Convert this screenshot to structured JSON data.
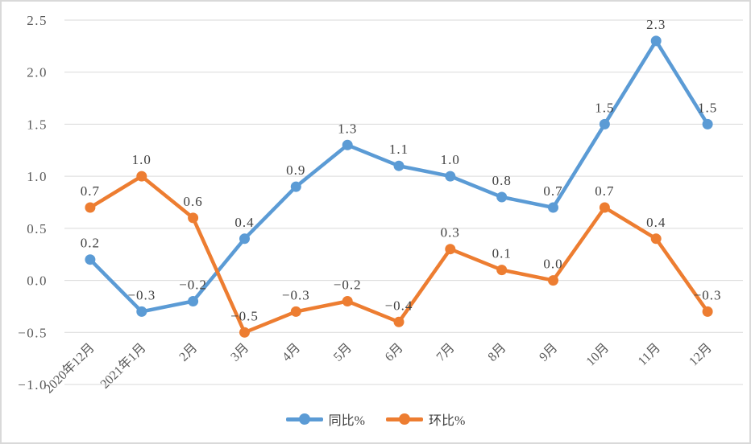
{
  "chart_data": {
    "type": "line",
    "title": "",
    "categories": [
      "2020年12月",
      "2021年1月",
      "2月",
      "3月",
      "4月",
      "5月",
      "6月",
      "7月",
      "8月",
      "9月",
      "10月",
      "11月",
      "12月"
    ],
    "series": [
      {
        "name": "同比%",
        "color": "#5B9BD5",
        "values": [
          0.2,
          -0.3,
          -0.2,
          0.4,
          0.9,
          1.3,
          1.1,
          1.0,
          0.8,
          0.7,
          1.5,
          2.3,
          1.5
        ]
      },
      {
        "name": "环比%",
        "color": "#ED7D31",
        "values": [
          0.7,
          1.0,
          0.6,
          -0.5,
          -0.3,
          -0.2,
          -0.4,
          0.3,
          0.1,
          0.0,
          0.7,
          0.4,
          -0.3
        ]
      }
    ],
    "xlabel": "",
    "ylabel": "",
    "ylim": [
      -1.0,
      2.5
    ],
    "y_tick_step": 0.5,
    "y_tick_labels": [
      "2.5",
      "2.0",
      "1.5",
      "1.0",
      "0.5",
      "0.0",
      "-0.5",
      "-1.0"
    ],
    "grid": "horizontal",
    "gridline_color": "#D9D9D9",
    "axis_text_color": "#595959",
    "data_label_color": "#404040",
    "x_label_rotation_deg": 45,
    "data_labels_shown": true,
    "legend_position": "bottom",
    "marker": "circle"
  }
}
